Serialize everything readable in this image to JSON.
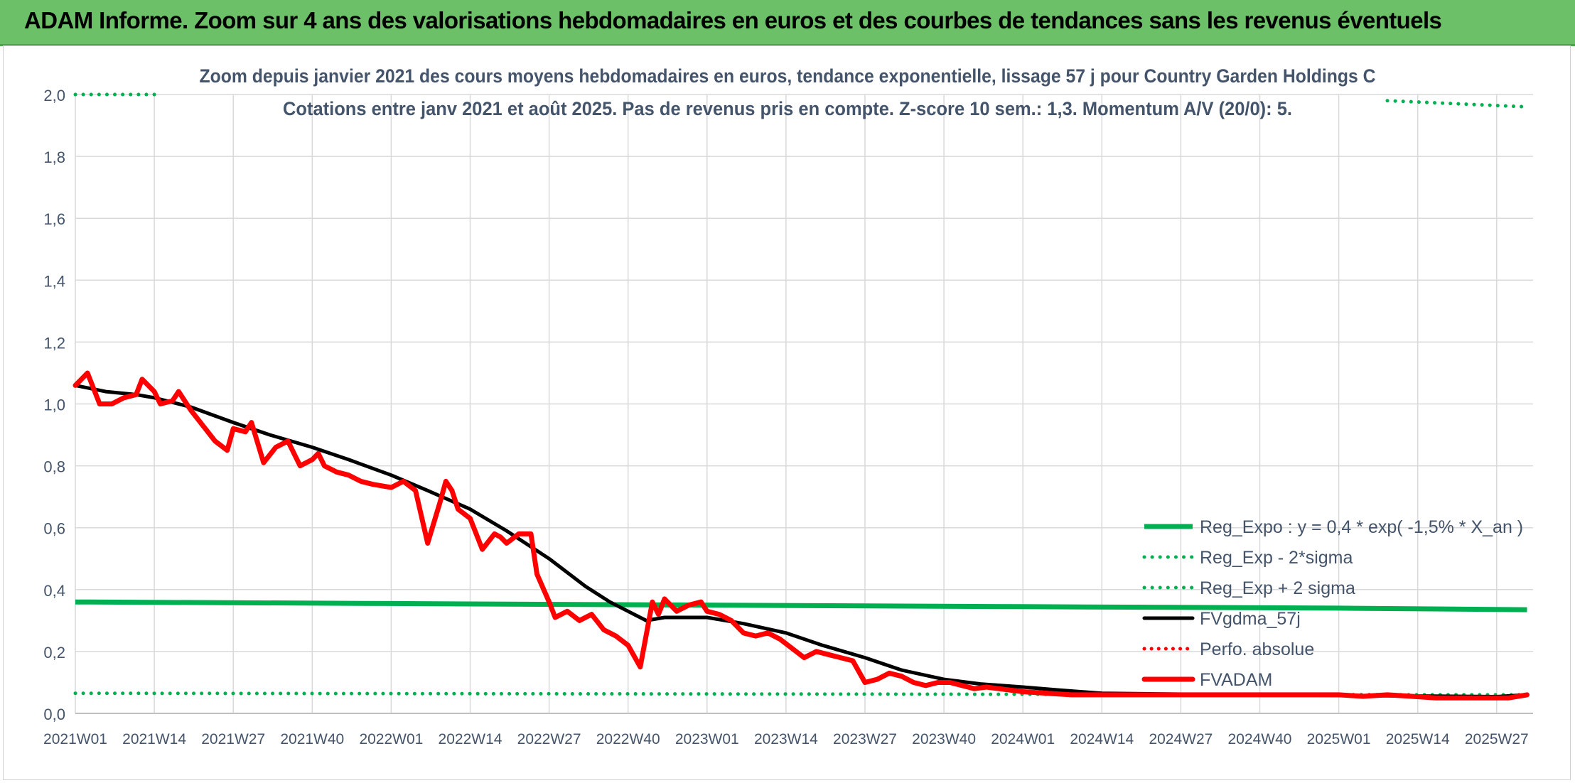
{
  "header": {
    "title": "ADAM Informe. Zoom sur 4 ans des valorisations hebdomadaires en euros et des courbes de tendances sans les revenus éventuels"
  },
  "colors": {
    "banner": "#6cc068",
    "reg_expo": "#00b050",
    "fvgdma": "#000000",
    "fvadam": "#ff0000",
    "grid": "#d9d9d9",
    "text": "#44546a"
  },
  "chart_data": {
    "type": "line",
    "title": "Zoom depuis janvier 2021 des cours moyens hebdomadaires en euros, tendance exponentielle, lissage 57 j pour Country Garden Holdings C",
    "subtitle": "Cotations entre janv 2021 et août 2025. Pas de revenus pris en compte. Z-score 10 sem.: 1,3. Momentum A/V (20/0): 5.",
    "xlabel": "",
    "ylabel": "",
    "ylim": [
      0,
      2.0
    ],
    "yticks": [
      "0,0",
      "0,2",
      "0,4",
      "0,6",
      "0,8",
      "1,0",
      "1,2",
      "1,4",
      "1,6",
      "1,8",
      "2,0"
    ],
    "xticks": [
      "2021W01",
      "2021W14",
      "2021W27",
      "2021W40",
      "2022W01",
      "2022W14",
      "2022W27",
      "2022W40",
      "2023W01",
      "2023W14",
      "2023W27",
      "2023W40",
      "2024W01",
      "2024W14",
      "2024W27",
      "2024W40",
      "2025W01",
      "2025W14",
      "2025W27"
    ],
    "x_range": [
      "2021W01",
      "2025W32"
    ],
    "grid": true,
    "legend_position": "bottom-right",
    "series": [
      {
        "name": "Reg_Expo : y = 0,4 * exp( -1,5% *  X_an )",
        "style": "solid",
        "x": [
          "2021W01",
          "2022W01",
          "2023W01",
          "2024W01",
          "2025W01",
          "2025W32"
        ],
        "values": [
          0.36,
          0.355,
          0.35,
          0.345,
          0.34,
          0.335
        ]
      },
      {
        "name": "Reg_Exp - 2*sigma",
        "style": "dotted",
        "x": [
          "2021W01",
          "2025W32"
        ],
        "values": [
          0.065,
          0.06
        ]
      },
      {
        "name": "Reg_Exp + 2 sigma",
        "style": "dotted",
        "x": [
          "2021W01",
          "2021W14",
          "2025W09",
          "2025W32"
        ],
        "values": [
          2.0,
          2.0,
          1.98,
          1.96
        ]
      },
      {
        "name": "FVgdma_57j",
        "style": "solid",
        "x": [
          "2021W01",
          "2021W06",
          "2021W11",
          "2021W14",
          "2021W20",
          "2021W27",
          "2021W33",
          "2021W40",
          "2021W46",
          "2022W01",
          "2022W07",
          "2022W14",
          "2022W20",
          "2022W27",
          "2022W33",
          "2022W37",
          "2022W40",
          "2022W43",
          "2022W46",
          "2023W01",
          "2023W07",
          "2023W14",
          "2023W20",
          "2023W27",
          "2023W33",
          "2023W40",
          "2023W46",
          "2024W01",
          "2024W07",
          "2024W14",
          "2024W27",
          "2024W40",
          "2025W01",
          "2025W14",
          "2025W27",
          "2025W32"
        ],
        "values": [
          1.06,
          1.04,
          1.03,
          1.02,
          0.99,
          0.94,
          0.9,
          0.86,
          0.82,
          0.77,
          0.72,
          0.66,
          0.59,
          0.5,
          0.41,
          0.36,
          0.33,
          0.3,
          0.31,
          0.31,
          0.29,
          0.26,
          0.22,
          0.18,
          0.14,
          0.11,
          0.095,
          0.085,
          0.075,
          0.065,
          0.062,
          0.06,
          0.058,
          0.056,
          0.054,
          0.06
        ]
      },
      {
        "name": "Perfo. absolue",
        "style": "dotted",
        "x": [],
        "values": []
      },
      {
        "name": "FVADAM",
        "style": "solid",
        "x": [
          "2021W01",
          "2021W03",
          "2021W05",
          "2021W07",
          "2021W09",
          "2021W11",
          "2021W12",
          "2021W14",
          "2021W15",
          "2021W17",
          "2021W18",
          "2021W20",
          "2021W22",
          "2021W24",
          "2021W26",
          "2021W27",
          "2021W29",
          "2021W30",
          "2021W32",
          "2021W34",
          "2021W36",
          "2021W38",
          "2021W40",
          "2021W41",
          "2021W42",
          "2021W44",
          "2021W46",
          "2021W48",
          "2021W50",
          "2022W01",
          "2022W03",
          "2022W05",
          "2022W07",
          "2022W09",
          "2022W10",
          "2022W11",
          "2022W12",
          "2022W14",
          "2022W16",
          "2022W18",
          "2022W19",
          "2022W20",
          "2022W22",
          "2022W24",
          "2022W25",
          "2022W27",
          "2022W28",
          "2022W30",
          "2022W32",
          "2022W34",
          "2022W36",
          "2022W38",
          "2022W40",
          "2022W42",
          "2022W44",
          "2022W45",
          "2022W46",
          "2022W47",
          "2022W48",
          "2022W50",
          "2022W52",
          "2023W01",
          "2023W03",
          "2023W05",
          "2023W07",
          "2023W09",
          "2023W11",
          "2023W13",
          "2023W15",
          "2023W17",
          "2023W19",
          "2023W21",
          "2023W23",
          "2023W25",
          "2023W27",
          "2023W29",
          "2023W31",
          "2023W33",
          "2023W35",
          "2023W37",
          "2023W39",
          "2023W41",
          "2023W43",
          "2023W45",
          "2023W47",
          "2023W49",
          "2024W01",
          "2024W05",
          "2024W09",
          "2024W13",
          "2024W17",
          "2024W25",
          "2024W35",
          "2024W45",
          "2025W01",
          "2025W05",
          "2025W09",
          "2025W13",
          "2025W17",
          "2025W21",
          "2025W25",
          "2025W29",
          "2025W32"
        ],
        "values": [
          1.06,
          1.1,
          1.0,
          1.0,
          1.02,
          1.03,
          1.08,
          1.04,
          1.0,
          1.01,
          1.04,
          0.98,
          0.93,
          0.88,
          0.85,
          0.92,
          0.91,
          0.94,
          0.81,
          0.86,
          0.88,
          0.8,
          0.82,
          0.84,
          0.8,
          0.78,
          0.77,
          0.75,
          0.74,
          0.73,
          0.75,
          0.72,
          0.55,
          0.68,
          0.75,
          0.72,
          0.66,
          0.63,
          0.53,
          0.58,
          0.57,
          0.55,
          0.58,
          0.58,
          0.45,
          0.36,
          0.31,
          0.33,
          0.3,
          0.32,
          0.27,
          0.25,
          0.22,
          0.15,
          0.36,
          0.32,
          0.37,
          0.35,
          0.33,
          0.35,
          0.36,
          0.33,
          0.32,
          0.3,
          0.26,
          0.25,
          0.26,
          0.24,
          0.21,
          0.18,
          0.2,
          0.19,
          0.18,
          0.17,
          0.1,
          0.11,
          0.13,
          0.12,
          0.1,
          0.09,
          0.1,
          0.1,
          0.09,
          0.08,
          0.085,
          0.08,
          0.07,
          0.065,
          0.06,
          0.06,
          0.06,
          0.06,
          0.06,
          0.06,
          0.06,
          0.055,
          0.06,
          0.055,
          0.05,
          0.05,
          0.05,
          0.05,
          0.06
        ]
      }
    ]
  }
}
